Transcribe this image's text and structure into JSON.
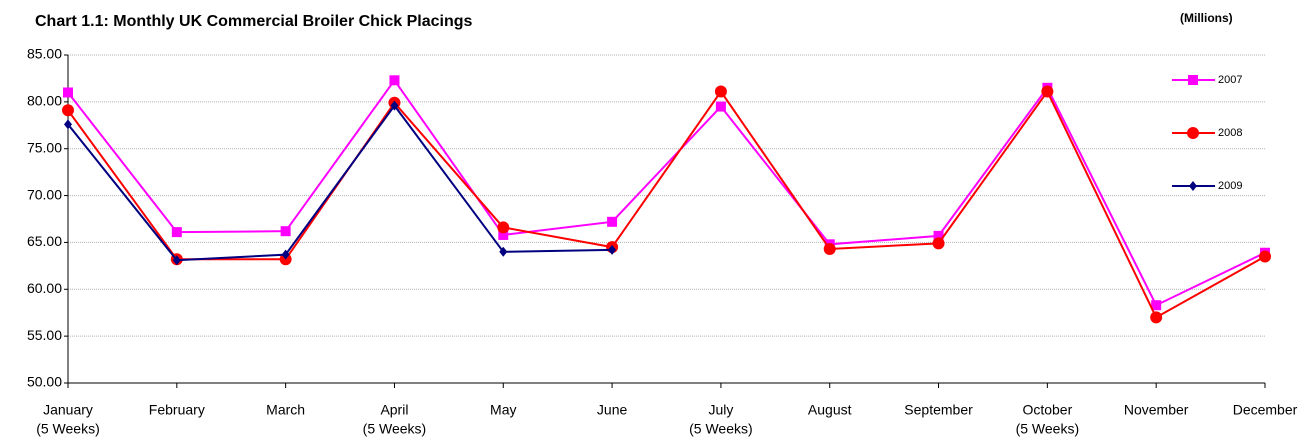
{
  "chart_data": {
    "type": "line",
    "title": "Chart 1.1: Monthly UK Commercial Broiler Chick Placings",
    "unit_label": "(Millions)",
    "categories": [
      "January",
      "February",
      "March",
      "April",
      "May",
      "June",
      "July",
      "August",
      "September",
      "October",
      "November",
      "December"
    ],
    "category_sublabels": [
      "(5 Weeks)",
      null,
      null,
      "(5 Weeks)",
      null,
      null,
      "(5 Weeks)",
      null,
      null,
      "(5 Weeks)",
      null,
      null
    ],
    "series": [
      {
        "name": "2007",
        "color": "#ff00ff",
        "marker": "square",
        "values": [
          81.0,
          66.1,
          66.2,
          82.3,
          65.8,
          67.2,
          79.5,
          64.8,
          65.7,
          81.5,
          58.3,
          63.9
        ]
      },
      {
        "name": "2008",
        "color": "#ff0000",
        "marker": "circle",
        "values": [
          79.1,
          63.2,
          63.2,
          79.9,
          66.6,
          64.5,
          81.1,
          64.3,
          64.9,
          81.1,
          57.0,
          63.5
        ]
      },
      {
        "name": "2009",
        "color": "#000080",
        "marker": "diamond",
        "values": [
          77.6,
          63.1,
          63.7,
          79.6,
          64.0,
          64.2,
          null,
          null,
          null,
          null,
          null,
          null
        ]
      }
    ],
    "ylim": [
      50,
      85
    ],
    "yticks": [
      {
        "value": 50,
        "label": "50.00"
      },
      {
        "value": 55,
        "label": "55.00"
      },
      {
        "value": 60,
        "label": "60.00"
      },
      {
        "value": 65,
        "label": "65.00"
      },
      {
        "value": 70,
        "label": "70.00"
      },
      {
        "value": 75,
        "label": "75.00"
      },
      {
        "value": 80,
        "label": "80.00"
      },
      {
        "value": 85,
        "label": "85.00"
      }
    ],
    "grid": true,
    "legend": "right"
  }
}
